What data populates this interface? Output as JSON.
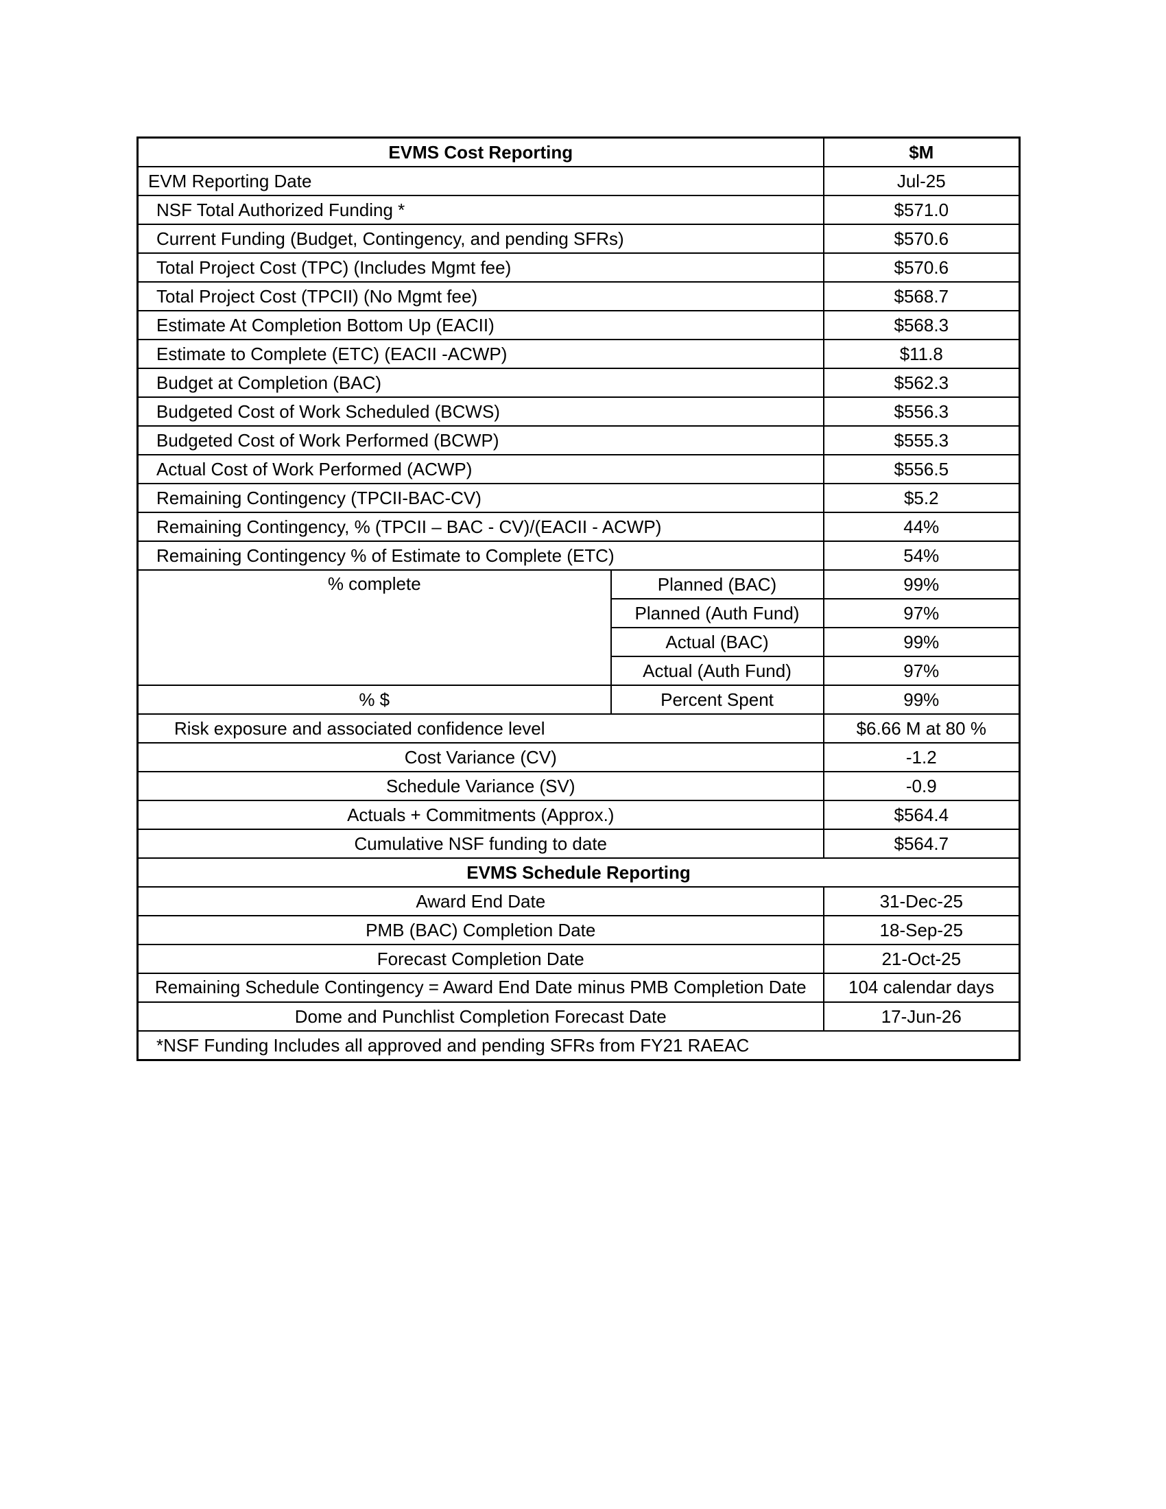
{
  "header": {
    "title": "EVMS Cost Reporting",
    "unit": "$M"
  },
  "cost_rows": [
    {
      "label": "EVM Reporting Date",
      "value": "Jul-25"
    },
    {
      "label": "NSF Total Authorized Funding *",
      "value": "$571.0"
    },
    {
      "label": "Current Funding (Budget, Contingency, and pending SFRs)",
      "value": "$570.6"
    },
    {
      "label": "Total Project Cost (TPC) (Includes Mgmt fee)",
      "value": "$570.6"
    },
    {
      "label": "Total Project Cost (TPCII) (No Mgmt fee)",
      "value": "$568.7"
    },
    {
      "label": "Estimate At Completion Bottom Up (EACII)",
      "value": "$568.3"
    },
    {
      "label": "Estimate to Complete (ETC) (EACII -ACWP)",
      "value": "$11.8"
    },
    {
      "label": "Budget at Completion (BAC)",
      "value": "$562.3"
    },
    {
      "label": "Budgeted Cost of Work Scheduled (BCWS)",
      "value": "$556.3"
    },
    {
      "label": "Budgeted Cost of Work Performed (BCWP)",
      "value": "$555.3"
    },
    {
      "label": "Actual Cost of Work Performed (ACWP)",
      "value": "$556.5"
    },
    {
      "label": "Remaining Contingency (TPCII-BAC-CV)",
      "value": "$5.2"
    },
    {
      "label": "Remaining Contingency, % (TPCII – BAC - CV)/(EACII - ACWP)",
      "value": "44%"
    },
    {
      "label": "Remaining Contingency % of Estimate to Complete (ETC)",
      "value": "54%"
    }
  ],
  "percent_complete": {
    "label": "% complete",
    "items": [
      {
        "label": "Planned (BAC)",
        "value": "99%"
      },
      {
        "label": "Planned (Auth Fund)",
        "value": "97%"
      },
      {
        "label": "Actual (BAC)",
        "value": "99%"
      },
      {
        "label": "Actual (Auth Fund)",
        "value": "97%"
      }
    ]
  },
  "percent_dollars": {
    "label": "% $",
    "sub_label": "Percent Spent",
    "value": "99%"
  },
  "summary_rows": [
    {
      "label": "Risk exposure and associated confidence level",
      "value": "$6.66 M at 80 %"
    },
    {
      "label": "Cost Variance (CV)",
      "value": "-1.2"
    },
    {
      "label": "Schedule Variance (SV)",
      "value": "-0.9"
    },
    {
      "label": "Actuals + Commitments (Approx.)",
      "value": "$564.4"
    },
    {
      "label": "Cumulative NSF funding to date",
      "value": "$564.7"
    }
  ],
  "schedule": {
    "title": "EVMS Schedule Reporting",
    "rows": [
      {
        "label": "Award End Date",
        "value": "31-Dec-25"
      },
      {
        "label": "PMB (BAC) Completion Date",
        "value": "18-Sep-25"
      },
      {
        "label": "Forecast Completion Date",
        "value": "21-Oct-25"
      },
      {
        "label": "Remaining Schedule Contingency = Award End Date minus PMB Completion Date",
        "value": "104 calendar days"
      },
      {
        "label": "Dome and Punchlist Completion Forecast Date",
        "value": "17-Jun-26"
      }
    ]
  },
  "footnote": "*NSF Funding Includes all approved and pending SFRs from FY21 RAEAC"
}
